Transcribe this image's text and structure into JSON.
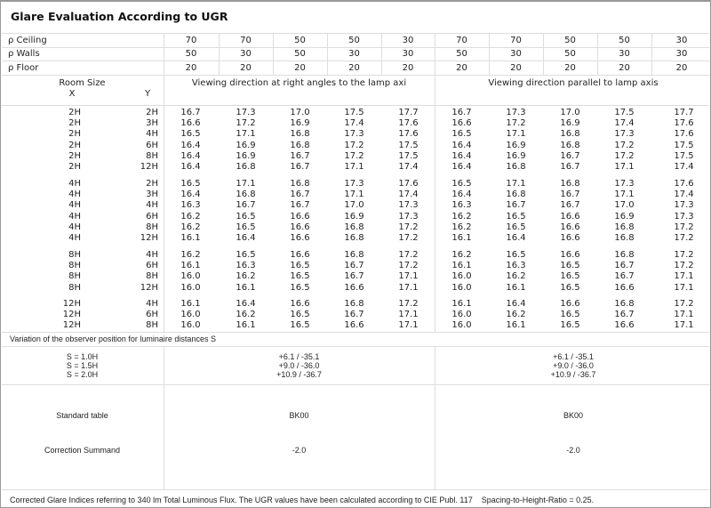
{
  "title": "Glare Evaluation According to UGR",
  "reflectances": {
    "ceiling": {
      "label": "ρ  Ceiling",
      "values": [
        "70",
        "70",
        "50",
        "50",
        "30",
        "70",
        "70",
        "50",
        "50",
        "30"
      ]
    },
    "walls": {
      "label": "ρ  Walls",
      "values": [
        "50",
        "30",
        "50",
        "30",
        "30",
        "50",
        "30",
        "50",
        "30",
        "30"
      ]
    },
    "floor": {
      "label": "ρ  Floor",
      "values": [
        "20",
        "20",
        "20",
        "20",
        "20",
        "20",
        "20",
        "20",
        "20",
        "20"
      ]
    }
  },
  "header": {
    "room_size": "Room Size",
    "x": "X",
    "y": "Y",
    "perpendicular": "Viewing direction at right angles to the lamp axi",
    "parallel": "Viewing direction parallel to lamp axis"
  },
  "groups": [
    {
      "rows": [
        {
          "x": "2H",
          "y": "2H",
          "perpendicular": [
            "16.7",
            "17.3",
            "17.0",
            "17.5",
            "17.7"
          ],
          "parallel": [
            "16.7",
            "17.3",
            "17.0",
            "17.5",
            "17.7"
          ]
        },
        {
          "x": "2H",
          "y": "3H",
          "perpendicular": [
            "16.6",
            "17.2",
            "16.9",
            "17.4",
            "17.6"
          ],
          "parallel": [
            "16.6",
            "17.2",
            "16.9",
            "17.4",
            "17.6"
          ]
        },
        {
          "x": "2H",
          "y": "4H",
          "perpendicular": [
            "16.5",
            "17.1",
            "16.8",
            "17.3",
            "17.6"
          ],
          "parallel": [
            "16.5",
            "17.1",
            "16.8",
            "17.3",
            "17.6"
          ]
        },
        {
          "x": "2H",
          "y": "6H",
          "perpendicular": [
            "16.4",
            "16.9",
            "16.8",
            "17.2",
            "17.5"
          ],
          "parallel": [
            "16.4",
            "16.9",
            "16.8",
            "17.2",
            "17.5"
          ]
        },
        {
          "x": "2H",
          "y": "8H",
          "perpendicular": [
            "16.4",
            "16.9",
            "16.7",
            "17.2",
            "17.5"
          ],
          "parallel": [
            "16.4",
            "16.9",
            "16.7",
            "17.2",
            "17.5"
          ]
        },
        {
          "x": "2H",
          "y": "12H",
          "perpendicular": [
            "16.4",
            "16.8",
            "16.7",
            "17.1",
            "17.4"
          ],
          "parallel": [
            "16.4",
            "16.8",
            "16.7",
            "17.1",
            "17.4"
          ]
        }
      ]
    },
    {
      "rows": [
        {
          "x": "4H",
          "y": "2H",
          "perpendicular": [
            "16.5",
            "17.1",
            "16.8",
            "17.3",
            "17.6"
          ],
          "parallel": [
            "16.5",
            "17.1",
            "16.8",
            "17.3",
            "17.6"
          ]
        },
        {
          "x": "4H",
          "y": "3H",
          "perpendicular": [
            "16.4",
            "16.8",
            "16.7",
            "17.1",
            "17.4"
          ],
          "parallel": [
            "16.4",
            "16.8",
            "16.7",
            "17.1",
            "17.4"
          ]
        },
        {
          "x": "4H",
          "y": "4H",
          "perpendicular": [
            "16.3",
            "16.7",
            "16.7",
            "17.0",
            "17.3"
          ],
          "parallel": [
            "16.3",
            "16.7",
            "16.7",
            "17.0",
            "17.3"
          ]
        },
        {
          "x": "4H",
          "y": "6H",
          "perpendicular": [
            "16.2",
            "16.5",
            "16.6",
            "16.9",
            "17.3"
          ],
          "parallel": [
            "16.2",
            "16.5",
            "16.6",
            "16.9",
            "17.3"
          ]
        },
        {
          "x": "4H",
          "y": "8H",
          "perpendicular": [
            "16.2",
            "16.5",
            "16.6",
            "16.8",
            "17.2"
          ],
          "parallel": [
            "16.2",
            "16.5",
            "16.6",
            "16.8",
            "17.2"
          ]
        },
        {
          "x": "4H",
          "y": "12H",
          "perpendicular": [
            "16.1",
            "16.4",
            "16.6",
            "16.8",
            "17.2"
          ],
          "parallel": [
            "16.1",
            "16.4",
            "16.6",
            "16.8",
            "17.2"
          ]
        }
      ]
    },
    {
      "rows": [
        {
          "x": "8H",
          "y": "4H",
          "perpendicular": [
            "16.2",
            "16.5",
            "16.6",
            "16.8",
            "17.2"
          ],
          "parallel": [
            "16.2",
            "16.5",
            "16.6",
            "16.8",
            "17.2"
          ]
        },
        {
          "x": "8H",
          "y": "6H",
          "perpendicular": [
            "16.1",
            "16.3",
            "16.5",
            "16.7",
            "17.2"
          ],
          "parallel": [
            "16.1",
            "16.3",
            "16.5",
            "16.7",
            "17.2"
          ]
        },
        {
          "x": "8H",
          "y": "8H",
          "perpendicular": [
            "16.0",
            "16.2",
            "16.5",
            "16.7",
            "17.1"
          ],
          "parallel": [
            "16.0",
            "16.2",
            "16.5",
            "16.7",
            "17.1"
          ]
        },
        {
          "x": "8H",
          "y": "12H",
          "perpendicular": [
            "16.0",
            "16.1",
            "16.5",
            "16.6",
            "17.1"
          ],
          "parallel": [
            "16.0",
            "16.1",
            "16.5",
            "16.6",
            "17.1"
          ]
        }
      ]
    },
    {
      "rows": [
        {
          "x": "12H",
          "y": "4H",
          "perpendicular": [
            "16.1",
            "16.4",
            "16.6",
            "16.8",
            "17.2"
          ],
          "parallel": [
            "16.1",
            "16.4",
            "16.6",
            "16.8",
            "17.2"
          ]
        },
        {
          "x": "12H",
          "y": "6H",
          "perpendicular": [
            "16.0",
            "16.2",
            "16.5",
            "16.7",
            "17.1"
          ],
          "parallel": [
            "16.0",
            "16.2",
            "16.5",
            "16.7",
            "17.1"
          ]
        },
        {
          "x": "12H",
          "y": "8H",
          "perpendicular": [
            "16.0",
            "16.1",
            "16.5",
            "16.6",
            "17.1"
          ],
          "parallel": [
            "16.0",
            "16.1",
            "16.5",
            "16.6",
            "17.1"
          ]
        }
      ]
    }
  ],
  "variation": {
    "heading": "Variation of the observer position for luminaire distances S",
    "labels": [
      "S = 1.0H",
      "S = 1.5H",
      "S = 2.0H"
    ],
    "perpendicular": [
      "+6.1 / -35.1",
      "+9.0 / -36.0",
      "+10.9 / -36.7"
    ],
    "parallel": [
      "+6.1 / -35.1",
      "+9.0 / -36.0",
      "+10.9 / -36.7"
    ]
  },
  "standard_table": {
    "label": "Standard table",
    "perpendicular": "BK00",
    "parallel": "BK00"
  },
  "correction": {
    "label": "Correction Summand",
    "perpendicular": "-2.0",
    "parallel": "-2.0"
  },
  "footer": "Corrected Glare Indices referring to 340 lm Total Luminous Flux. The UGR values have been calculated according to CIE Publ. 117    Spacing-to-Height-Ratio = 0.25."
}
